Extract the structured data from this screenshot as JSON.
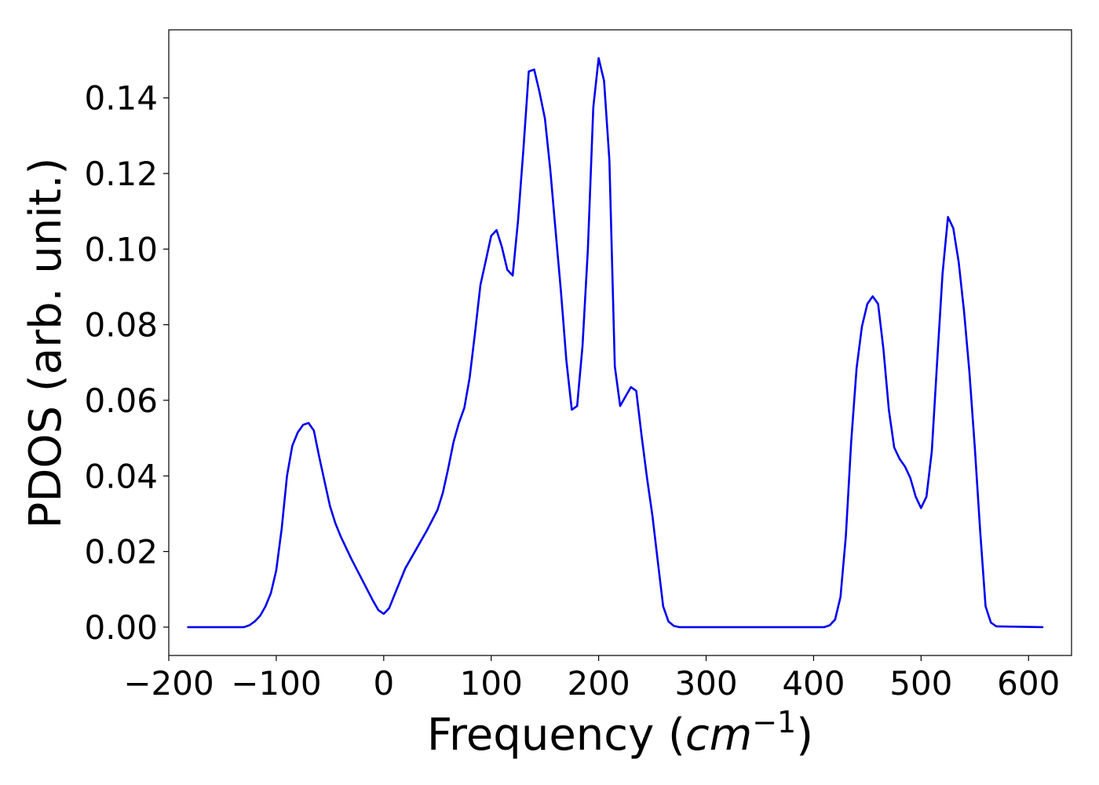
{
  "chart_data": {
    "type": "line",
    "title": "",
    "xlabel": "Frequency (",
    "xlabel_math": "cm",
    "xlabel_superscript": "−1",
    "xlabel_close": ")",
    "ylabel": "PDOS (arb. unit.)",
    "xlim": [
      -200,
      640
    ],
    "ylim": [
      -0.0075,
      0.158
    ],
    "xticks": [
      -200,
      -100,
      0,
      100,
      200,
      300,
      400,
      500,
      600
    ],
    "xtick_labels": [
      "−200",
      "−100",
      "0",
      "100",
      "200",
      "300",
      "400",
      "500",
      "600"
    ],
    "yticks": [
      0.0,
      0.02,
      0.04,
      0.06,
      0.08,
      0.1,
      0.12,
      0.14
    ],
    "ytick_labels": [
      "0.00",
      "0.02",
      "0.04",
      "0.06",
      "0.08",
      "0.10",
      "0.12",
      "0.14"
    ],
    "grid": false,
    "legend": "none",
    "series": [
      {
        "color": "#0000ee",
        "x": [
          -182,
          -130,
          -125,
          -120,
          -115,
          -110,
          -105,
          -100,
          -95,
          -90,
          -85,
          -80,
          -75,
          -70,
          -65,
          -60,
          -55,
          -50,
          -45,
          -40,
          -30,
          -20,
          -10,
          -5,
          0,
          5,
          10,
          20,
          30,
          40,
          50,
          55,
          60,
          65,
          70,
          75,
          80,
          85,
          90,
          95,
          100,
          105,
          110,
          115,
          120,
          125,
          130,
          135,
          140,
          145,
          150,
          155,
          160,
          165,
          170,
          175,
          180,
          185,
          190,
          195,
          200,
          205,
          210,
          215,
          220,
          225,
          230,
          235,
          240,
          245,
          250,
          255,
          260,
          265,
          270,
          275,
          280,
          410,
          415,
          420,
          425,
          430,
          435,
          440,
          445,
          450,
          455,
          460,
          465,
          470,
          475,
          480,
          485,
          490,
          495,
          500,
          505,
          510,
          515,
          520,
          525,
          530,
          535,
          540,
          545,
          550,
          555,
          560,
          565,
          570,
          613
        ],
        "y": [
          0,
          0,
          0.0005,
          0.0015,
          0.003,
          0.0055,
          0.009,
          0.015,
          0.026,
          0.04,
          0.048,
          0.0515,
          0.0535,
          0.054,
          0.052,
          0.045,
          0.0385,
          0.032,
          0.0275,
          0.024,
          0.018,
          0.0125,
          0.007,
          0.0045,
          0.0035,
          0.005,
          0.0085,
          0.0155,
          0.0205,
          0.0255,
          0.031,
          0.0355,
          0.042,
          0.049,
          0.054,
          0.058,
          0.066,
          0.078,
          0.0905,
          0.097,
          0.1035,
          0.105,
          0.1005,
          0.0945,
          0.093,
          0.1075,
          0.1265,
          0.147,
          0.1475,
          0.1415,
          0.1345,
          0.121,
          0.1045,
          0.0885,
          0.0705,
          0.0575,
          0.0585,
          0.0745,
          0.1,
          0.1375,
          0.1505,
          0.1445,
          0.1235,
          0.069,
          0.0585,
          0.061,
          0.0635,
          0.0625,
          0.0505,
          0.0395,
          0.0295,
          0.0175,
          0.0055,
          0.0015,
          0.0003,
          0,
          0,
          0,
          0.0005,
          0.002,
          0.008,
          0.024,
          0.049,
          0.0685,
          0.0795,
          0.0855,
          0.0875,
          0.0855,
          0.0735,
          0.0575,
          0.0475,
          0.0445,
          0.0425,
          0.0395,
          0.0345,
          0.0315,
          0.0345,
          0.0465,
          0.0705,
          0.0935,
          0.1085,
          0.1055,
          0.0965,
          0.0835,
          0.0675,
          0.0475,
          0.0255,
          0.0055,
          0.0012,
          0.0002,
          0
        ]
      }
    ]
  }
}
